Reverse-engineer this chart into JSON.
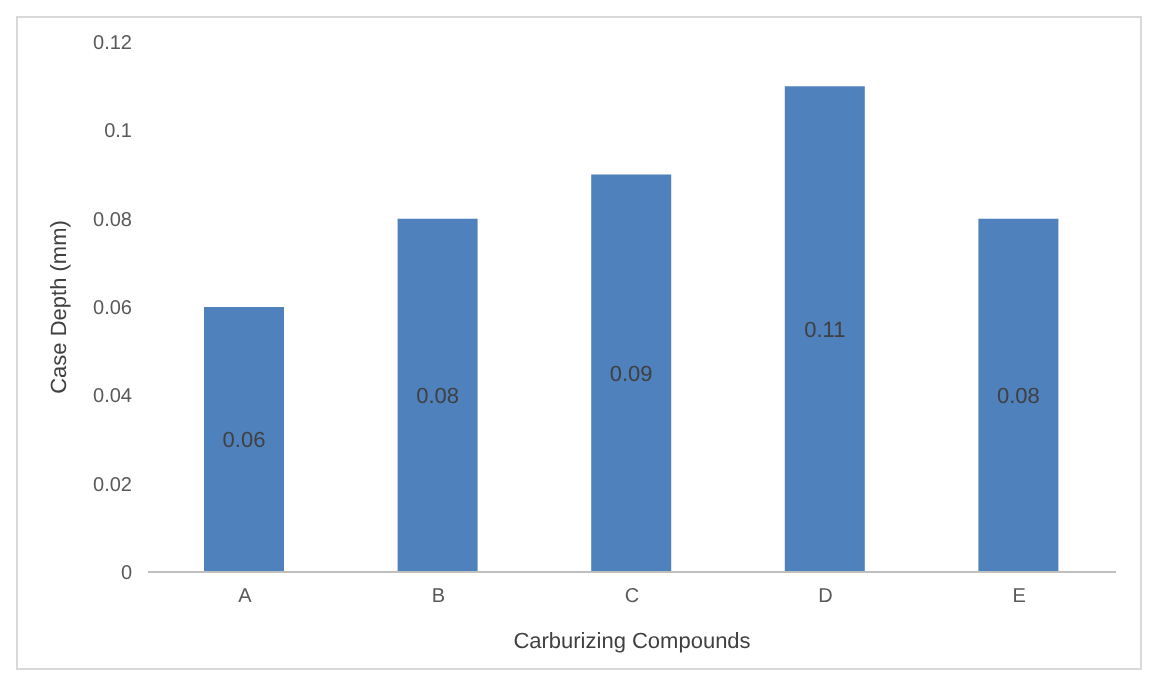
{
  "chart_data": {
    "type": "bar",
    "xlabel": "Carburizing Compounds",
    "ylabel": "Case Depth  (mm)",
    "categories": [
      "A",
      "B",
      "C",
      "D",
      "E"
    ],
    "values": [
      0.06,
      0.08,
      0.09,
      0.11,
      0.08
    ],
    "color": "#4f81bd",
    "ylim": [
      0,
      0.12
    ],
    "yticks": [
      0,
      0.02,
      0.04,
      0.06,
      0.08,
      0.1,
      0.12
    ],
    "data_labels": true
  }
}
